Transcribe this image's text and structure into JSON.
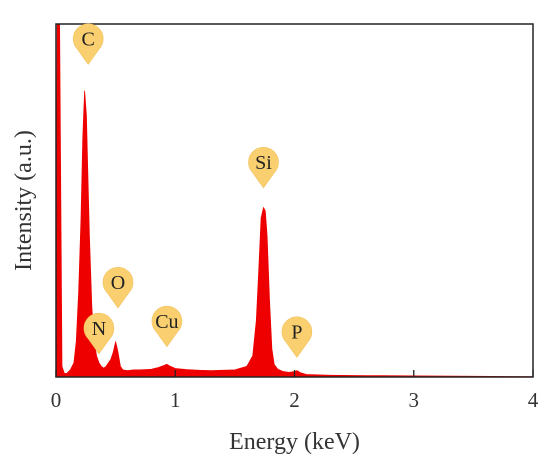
{
  "chart_data": {
    "type": "area",
    "title": "",
    "xlabel": "Energy (keV)",
    "ylabel": "Intensity (a.u.)",
    "xlim": [
      0,
      4
    ],
    "ylim": [
      0,
      100
    ],
    "xticks": [
      0,
      1,
      2,
      3,
      4
    ],
    "yticks_shown": false,
    "grid": false,
    "legend": "none",
    "series": [
      {
        "color": "#ee0000",
        "x": [
          0.0,
          0.01,
          0.03,
          0.05,
          0.07,
          0.09,
          0.12,
          0.15,
          0.17,
          0.19,
          0.21,
          0.225,
          0.24,
          0.255,
          0.265,
          0.28,
          0.3,
          0.32,
          0.34,
          0.36,
          0.38,
          0.4,
          0.42,
          0.44,
          0.46,
          0.48,
          0.5,
          0.52,
          0.54,
          0.56,
          0.6,
          0.65,
          0.7,
          0.75,
          0.8,
          0.85,
          0.9,
          0.93,
          0.96,
          1.0,
          1.1,
          1.2,
          1.3,
          1.4,
          1.5,
          1.6,
          1.65,
          1.68,
          1.7,
          1.72,
          1.74,
          1.755,
          1.77,
          1.79,
          1.81,
          1.83,
          1.86,
          1.9,
          1.95,
          2.0,
          2.02,
          2.05,
          2.1,
          2.3,
          2.6,
          3.0,
          3.5,
          4.0
        ],
        "y": [
          0,
          100,
          100,
          3,
          1,
          1,
          2,
          4,
          10,
          24,
          45,
          68,
          81,
          74,
          60,
          40,
          20,
          10,
          6,
          4,
          3,
          2.5,
          3,
          4,
          5,
          7,
          10,
          7,
          3,
          2,
          1.8,
          2.0,
          2.0,
          2.1,
          2.2,
          2.6,
          3.2,
          3.6,
          3.0,
          2.4,
          2.1,
          1.9,
          1.8,
          1.9,
          2.0,
          3.0,
          6,
          16,
          30,
          45,
          48,
          47,
          40,
          22,
          8,
          3.5,
          2.2,
          1.6,
          1.3,
          1.5,
          1.8,
          1.2,
          0.7,
          0.5,
          0.4,
          0.3,
          0.2,
          0.1
        ]
      }
    ],
    "annotations": [
      {
        "label": "C",
        "x": 0.27,
        "y": 88
      },
      {
        "label": "N",
        "x": 0.36,
        "y": 6
      },
      {
        "label": "O",
        "x": 0.52,
        "y": 19
      },
      {
        "label": "Cu",
        "x": 0.93,
        "y": 8
      },
      {
        "label": "Si",
        "x": 1.74,
        "y": 53
      },
      {
        "label": "P",
        "x": 2.02,
        "y": 5
      }
    ],
    "colors": {
      "fill": "#ee0000",
      "pin": "#f9cf70"
    }
  }
}
